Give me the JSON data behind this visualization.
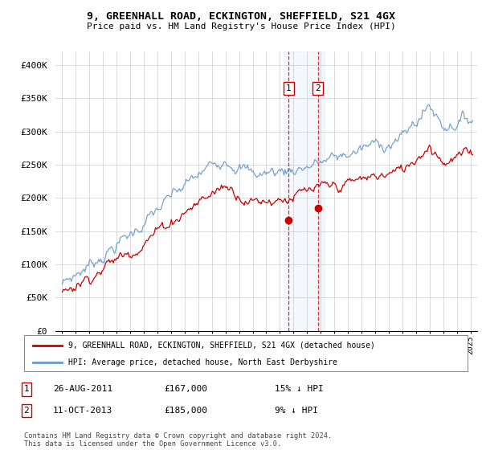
{
  "title_line1": "9, GREENHALL ROAD, ECKINGTON, SHEFFIELD, S21 4GX",
  "title_line2": "Price paid vs. HM Land Registry's House Price Index (HPI)",
  "ylabel_ticks": [
    "£0",
    "£50K",
    "£100K",
    "£150K",
    "£200K",
    "£250K",
    "£300K",
    "£350K",
    "£400K"
  ],
  "ytick_values": [
    0,
    50000,
    100000,
    150000,
    200000,
    250000,
    300000,
    350000,
    400000
  ],
  "ylim": [
    0,
    420000
  ],
  "xlim_start": 1994.5,
  "xlim_end": 2025.5,
  "hpi_color": "#6699cc",
  "price_color": "#cc0000",
  "transaction1_x": 2011.65,
  "transaction1_y": 167000,
  "transaction2_x": 2013.78,
  "transaction2_y": 185000,
  "shade_x1": 2011.3,
  "shade_x2": 2014.3,
  "legend_line1": "9, GREENHALL ROAD, ECKINGTON, SHEFFIELD, S21 4GX (detached house)",
  "legend_line2": "HPI: Average price, detached house, North East Derbyshire",
  "table_rows": [
    {
      "num": "1",
      "date": "26-AUG-2011",
      "price": "£167,000",
      "pct": "15% ↓ HPI"
    },
    {
      "num": "2",
      "date": "11-OCT-2013",
      "price": "£185,000",
      "pct": "9% ↓ HPI"
    }
  ],
  "footnote": "Contains HM Land Registry data © Crown copyright and database right 2024.\nThis data is licensed under the Open Government Licence v3.0.",
  "background_color": "#ffffff",
  "plot_bg_color": "#ffffff",
  "grid_color": "#cccccc"
}
